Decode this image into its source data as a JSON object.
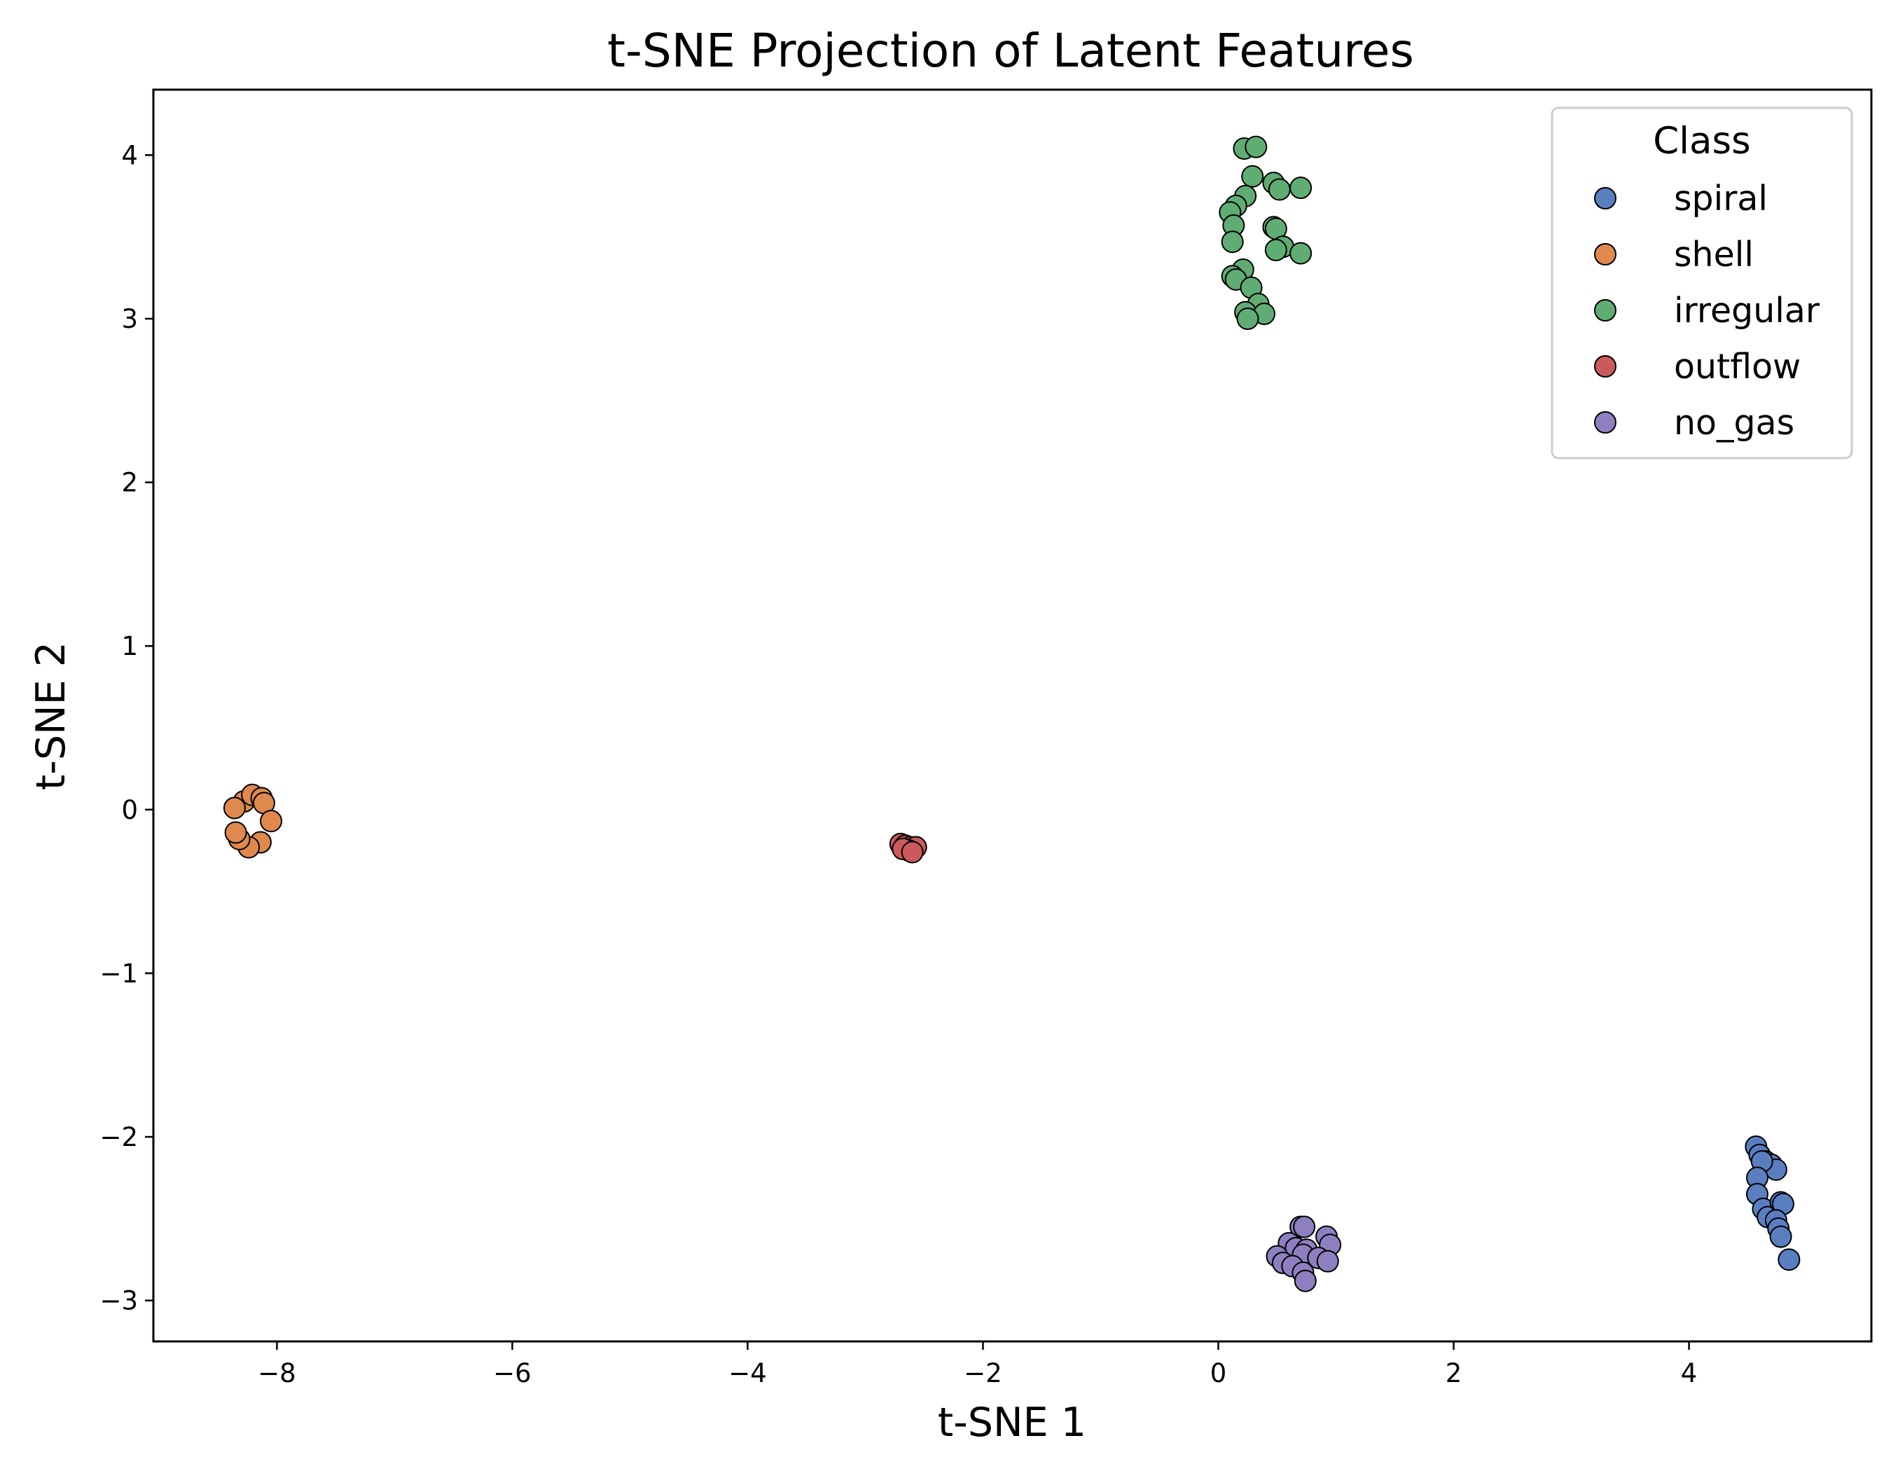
{
  "chart_data": {
    "type": "scatter",
    "title": "t-SNE Projection of Latent Features",
    "xlabel": "t-SNE 1",
    "ylabel": "t-SNE 2",
    "xlim": [
      -9.05,
      5.55
    ],
    "ylim": [
      -3.25,
      4.4
    ],
    "xticks": [
      -8,
      -6,
      -4,
      -2,
      0,
      2,
      4
    ],
    "yticks": [
      -3,
      -2,
      -1,
      0,
      1,
      2,
      3,
      4
    ],
    "xtick_labels": [
      "−8",
      "−6",
      "−4",
      "−2",
      "0",
      "2",
      "4"
    ],
    "ytick_labels": [
      "−3",
      "−2",
      "−1",
      "0",
      "1",
      "2",
      "3",
      "4"
    ],
    "grid": false,
    "legend": {
      "title": "Class",
      "position": "top-right"
    },
    "series": [
      {
        "name": "spiral",
        "color": "#5a7fc0",
        "points": [
          [
            4.57,
            -2.06
          ],
          [
            4.6,
            -2.11
          ],
          [
            4.65,
            -2.15
          ],
          [
            4.7,
            -2.17
          ],
          [
            4.74,
            -2.2
          ],
          [
            4.62,
            -2.15
          ],
          [
            4.58,
            -2.25
          ],
          [
            4.58,
            -2.35
          ],
          [
            4.63,
            -2.44
          ],
          [
            4.67,
            -2.49
          ],
          [
            4.78,
            -2.4
          ],
          [
            4.8,
            -2.41
          ],
          [
            4.74,
            -2.51
          ],
          [
            4.76,
            -2.56
          ],
          [
            4.78,
            -2.61
          ],
          [
            4.85,
            -2.75
          ]
        ]
      },
      {
        "name": "shell",
        "color": "#e0894f",
        "points": [
          [
            -8.28,
            0.05
          ],
          [
            -8.21,
            0.09
          ],
          [
            -8.13,
            0.07
          ],
          [
            -8.11,
            0.04
          ],
          [
            -8.05,
            -0.07
          ],
          [
            -8.14,
            -0.2
          ],
          [
            -8.24,
            -0.23
          ],
          [
            -8.32,
            -0.18
          ],
          [
            -8.35,
            -0.14
          ],
          [
            -8.36,
            0.01
          ]
        ]
      },
      {
        "name": "irregular",
        "color": "#60ad74",
        "points": [
          [
            0.22,
            4.04
          ],
          [
            0.32,
            4.05
          ],
          [
            0.29,
            3.87
          ],
          [
            0.47,
            3.83
          ],
          [
            0.52,
            3.79
          ],
          [
            0.7,
            3.8
          ],
          [
            0.23,
            3.75
          ],
          [
            0.15,
            3.69
          ],
          [
            0.1,
            3.65
          ],
          [
            0.13,
            3.57
          ],
          [
            0.47,
            3.56
          ],
          [
            0.49,
            3.55
          ],
          [
            0.12,
            3.47
          ],
          [
            0.55,
            3.44
          ],
          [
            0.49,
            3.42
          ],
          [
            0.7,
            3.4
          ],
          [
            0.21,
            3.3
          ],
          [
            0.12,
            3.26
          ],
          [
            0.15,
            3.24
          ],
          [
            0.28,
            3.19
          ],
          [
            0.34,
            3.09
          ],
          [
            0.23,
            3.04
          ],
          [
            0.39,
            3.03
          ],
          [
            0.25,
            3.0
          ]
        ]
      },
      {
        "name": "outflow",
        "color": "#cc5a5d",
        "points": [
          [
            -2.7,
            -0.21
          ],
          [
            -2.66,
            -0.22
          ],
          [
            -2.62,
            -0.23
          ],
          [
            -2.57,
            -0.23
          ],
          [
            -2.63,
            -0.25
          ],
          [
            -2.68,
            -0.24
          ],
          [
            -2.6,
            -0.26
          ]
        ]
      },
      {
        "name": "no_gas",
        "color": "#8e80c0",
        "points": [
          [
            0.7,
            -2.55
          ],
          [
            0.73,
            -2.55
          ],
          [
            0.92,
            -2.61
          ],
          [
            0.95,
            -2.66
          ],
          [
            0.6,
            -2.65
          ],
          [
            0.66,
            -2.68
          ],
          [
            0.75,
            -2.69
          ],
          [
            0.5,
            -2.73
          ],
          [
            0.72,
            -2.72
          ],
          [
            0.85,
            -2.74
          ],
          [
            0.93,
            -2.76
          ],
          [
            0.55,
            -2.77
          ],
          [
            0.63,
            -2.79
          ],
          [
            0.72,
            -2.83
          ],
          [
            0.74,
            -2.88
          ]
        ]
      }
    ]
  }
}
